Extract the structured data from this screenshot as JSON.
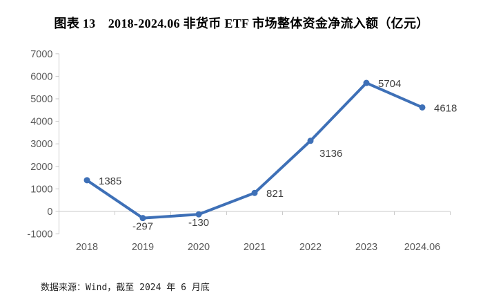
{
  "page": {
    "background": "#ffffff"
  },
  "chart_data": {
    "type": "line",
    "title": "图表 13　2018-2024.06 非货币 ETF 市场整体资金净流入额（亿元）",
    "categories": [
      "2018",
      "2019",
      "2020",
      "2021",
      "2022",
      "2023",
      "2024.06"
    ],
    "values": [
      1385,
      -297,
      -130,
      821,
      3136,
      5704,
      4618
    ],
    "data_labels": [
      "1385",
      "-297",
      "-130",
      "821",
      "3136",
      "5704",
      "4618"
    ],
    "label_positions": [
      "right",
      "below",
      "below",
      "right",
      "below-right",
      "right",
      "right"
    ],
    "xlabel": "",
    "ylabel": "",
    "ylim": [
      -1000,
      7000
    ],
    "ytick_step": 1000,
    "ytick_labels": [
      "7000",
      "6000",
      "5000",
      "4000",
      "3000",
      "2000",
      "1000",
      "0",
      "-1000"
    ],
    "grid": "zero line only, category boundary ticks on zero axis",
    "legend": "none",
    "marker": "circle",
    "colors": {
      "line": "#3E70B7",
      "axis": "#C9C9C9",
      "tick_text": "#595959",
      "label_text": "#3F3F3F"
    }
  },
  "source_note": "数据来源：Wind，截至 2024 年 6 月底"
}
